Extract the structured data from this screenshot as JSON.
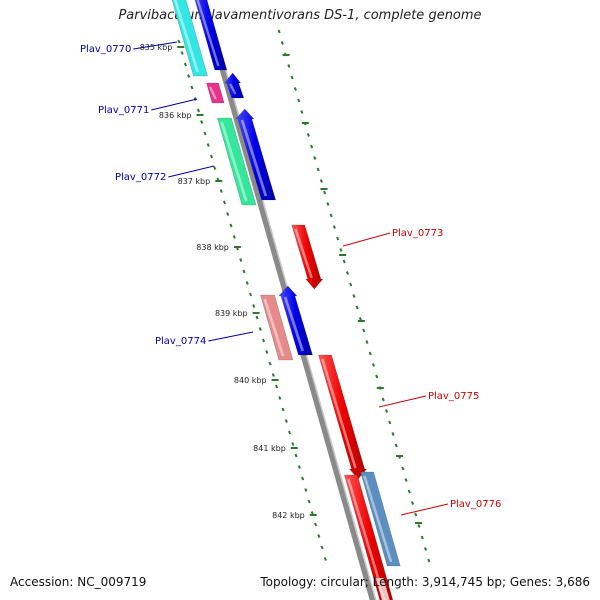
{
  "title": "Parvibaculum lavamentivorans DS-1, complete genome",
  "footer": {
    "accession": "Accession: NC_009719",
    "summary": "Topology: circular; Length: 3,914,745 bp; Genes: 3,686"
  },
  "colors": {
    "forward_label": "#0000aa",
    "reverse_label": "#cc0000",
    "backbone": "#888888",
    "tick": "#2a7a2a"
  },
  "kbp_labels": [
    "835 kbp",
    "836 kbp",
    "837 kbp",
    "838 kbp",
    "839 kbp",
    "840 kbp",
    "841 kbp",
    "842 kbp"
  ],
  "genes": [
    {
      "label": "Plav_0770",
      "strand": "forward",
      "color": "#33e6e6"
    },
    {
      "label": "Plav_0771",
      "strand": "forward",
      "color": "#e6338c"
    },
    {
      "label": "Plav_0772",
      "strand": "forward",
      "color": "#33e69c"
    },
    {
      "label": "Plav_0773",
      "strand": "reverse",
      "color": "#ee1111"
    },
    {
      "label": "Plav_0774",
      "strand": "forward",
      "color": "#e68a8a"
    },
    {
      "label": "Plav_0775",
      "strand": "reverse",
      "color": "#ee1111"
    },
    {
      "label": "Plav_0776",
      "strand": "reverse",
      "color": "#5b8fc0"
    }
  ]
}
